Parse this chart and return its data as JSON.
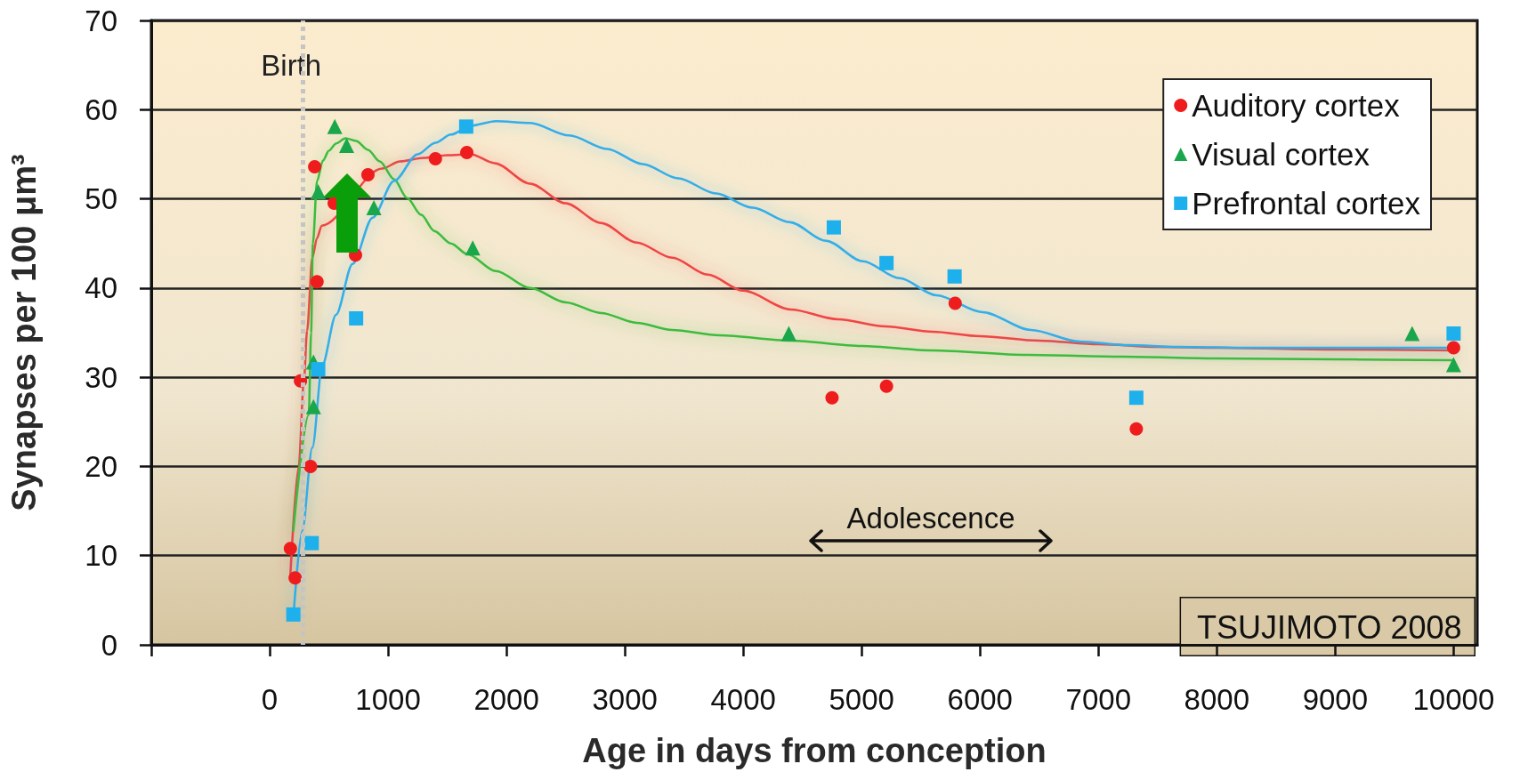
{
  "chart_data": {
    "type": "scatter",
    "xlabel": "Age in days from conception",
    "ylabel": "Synapses per 100 μm³",
    "xlim": [
      -1000,
      10200
    ],
    "xticks": [
      {
        "value": -1000,
        "label": null
      },
      0,
      1000,
      2000,
      3000,
      4000,
      5000,
      6000,
      7000,
      8000,
      9000,
      10000
    ],
    "ylim": [
      0,
      70
    ],
    "yticks": [
      0,
      10,
      20,
      30,
      40,
      50,
      60,
      70
    ],
    "grid": "y",
    "legend": "top right",
    "ref_lines": [
      {
        "axis": "x",
        "value": 280,
        "label": "Birth",
        "color": "#c4c4c4",
        "line_style": "dotted"
      }
    ],
    "annotations": [
      "TSUJIMOTO 2008",
      "Adolescence"
    ],
    "series": [
      {
        "name": "Auditory cortex",
        "marker": "circle",
        "color": "#ee1c1c",
        "x": [
          175,
          215,
          260,
          345,
          380,
          400,
          545,
          725,
          830,
          1400,
          1665,
          4750,
          5210,
          5790,
          7320,
          10000
        ],
        "values": [
          10.8,
          7.5,
          29.6,
          20.0,
          53.6,
          40.7,
          49.5,
          43.7,
          52.7,
          54.5,
          55.2,
          27.7,
          29.0,
          38.3,
          24.2,
          33.3
        ]
      },
      {
        "name": "Visual cortex",
        "marker": "triangle",
        "color": "#1aa64a",
        "x": [
          370,
          370,
          410,
          550,
          650,
          880,
          1715,
          4385,
          9650,
          10000
        ],
        "values": [
          26.7,
          31.7,
          50.8,
          58.1,
          56.0,
          49.0,
          44.5,
          34.9,
          34.9,
          31.4
        ]
      },
      {
        "name": "Prefrontal cortex",
        "marker": "square",
        "color": "#1eb0ec",
        "x": [
          200,
          355,
          410,
          730,
          1660,
          4765,
          5210,
          5785,
          7320,
          10000
        ],
        "values": [
          3.4,
          11.4,
          30.9,
          36.6,
          58.1,
          46.8,
          42.8,
          41.3,
          27.7,
          34.9
        ]
      },
      {
        "type": "line",
        "marker": "none",
        "color": "#ef4444",
        "x": [
          175,
          245,
          289,
          316,
          360,
          400,
          440,
          950,
          1100,
          1300,
          1500,
          1700,
          1900,
          2200,
          2500,
          2800,
          3100,
          3400,
          3700,
          4000,
          4400,
          4800,
          5200,
          5600,
          6000,
          6500,
          7000,
          7500,
          8000,
          9000,
          10000
        ],
        "values": [
          7.9,
          20.0,
          29.6,
          35.2,
          43.4,
          45.6,
          47.0,
          53.4,
          54.2,
          54.6,
          54.9,
          55.0,
          54.0,
          51.7,
          49.5,
          47.3,
          45.1,
          43.4,
          41.5,
          39.7,
          37.6,
          36.5,
          35.7,
          35.1,
          34.6,
          34.1,
          33.7,
          33.4,
          33.3,
          33.1,
          33.0
        ]
      },
      {
        "type": "line",
        "marker": "none",
        "color": "#3dbb3d",
        "x": [
          200,
          330,
          350,
          365,
          400,
          450,
          500,
          560,
          640,
          730,
          830,
          930,
          1050,
          1160,
          1280,
          1390,
          1530,
          1670,
          1910,
          2200,
          2500,
          2800,
          3100,
          3400,
          3800,
          4400,
          5000,
          5600,
          6400,
          7200,
          8000,
          9000,
          10000
        ],
        "values": [
          12.8,
          25.8,
          35.0,
          45.0,
          52.0,
          54.3,
          55.4,
          56.2,
          56.8,
          56.5,
          55.5,
          54.2,
          52.2,
          50.1,
          48.2,
          46.4,
          45.0,
          43.8,
          41.9,
          40.0,
          38.4,
          37.2,
          36.1,
          35.3,
          34.7,
          34.1,
          33.5,
          33.0,
          32.5,
          32.3,
          32.1,
          32.0,
          31.9
        ]
      },
      {
        "type": "line",
        "marker": "none",
        "color": "#30aee8",
        "x": [
          200,
          275,
          360,
          445,
          560,
          700,
          870,
          1050,
          1250,
          1400,
          1530,
          1700,
          1910,
          2200,
          2530,
          2850,
          3150,
          3450,
          3770,
          4080,
          4390,
          4700,
          5010,
          5320,
          5630,
          6020,
          6430,
          6840,
          7250,
          7670,
          8300,
          8910,
          10000
        ],
        "values": [
          3.1,
          12.8,
          22.1,
          31.4,
          37.0,
          42.7,
          47.9,
          52.0,
          55.0,
          56.3,
          57.2,
          58.2,
          58.7,
          58.5,
          57.1,
          55.6,
          53.9,
          52.3,
          50.6,
          49.0,
          47.4,
          45.3,
          43.0,
          41.1,
          39.2,
          37.3,
          35.3,
          34.0,
          33.6,
          33.4,
          33.3,
          33.3,
          33.3
        ]
      }
    ]
  }
}
